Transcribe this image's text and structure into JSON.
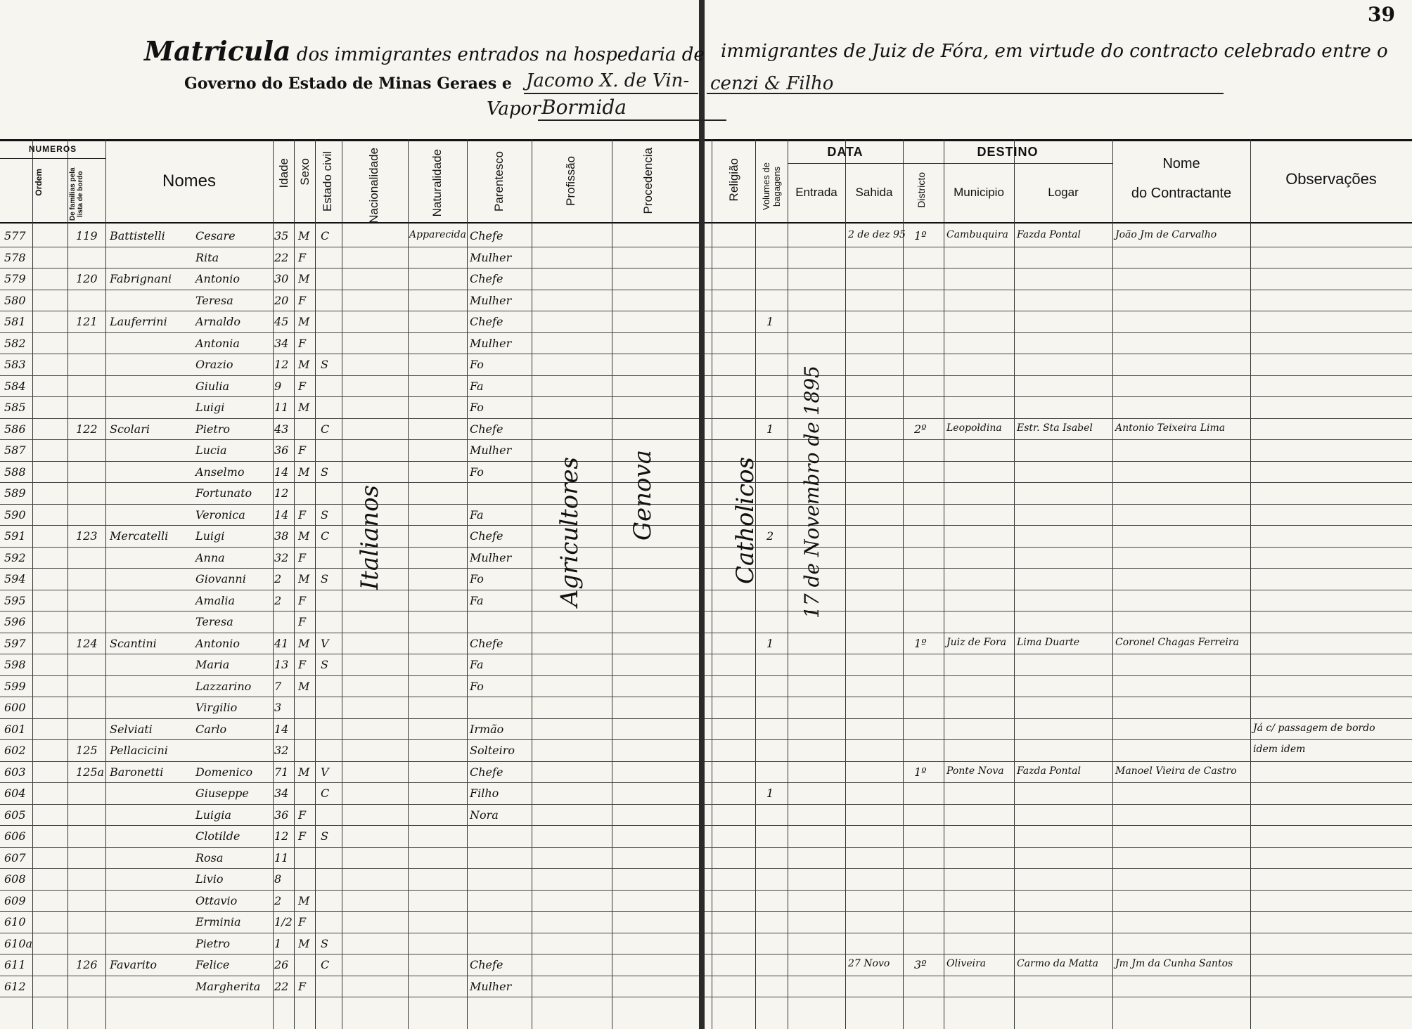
{
  "page_number": "39",
  "header": {
    "left_title_word": "Matricula",
    "left_title_rest": "dos immigrantes entrados na hospedaria de",
    "right_title": "immigrantes de Juiz de Fóra, em virtude do contracto celebrado entre o",
    "governo_text": "Governo do Estado de Minas Geraes e",
    "contractor_left": "Jacomo X. de Vin-",
    "contractor_right": "cenzi & Filho",
    "vapor_label": "Vapor",
    "vapor_name": "Bormida"
  },
  "columns_left": {
    "numeros": "NUMEROS",
    "ordem": "Ordem",
    "familia": "De familias pela lista de bordo",
    "nomes": "Nomes",
    "idade": "Idade",
    "sexo": "Sexo",
    "estado_civil": "Estado civil",
    "nacionalidade": "Nacionalidade",
    "naturalidade": "Naturalidade",
    "parentesco": "Parentesco",
    "profissao": "Profissão",
    "procedencia": "Procedencia"
  },
  "columns_right": {
    "religiao": "Religião",
    "volumes": "Volumes de bagagens",
    "data": "DATA",
    "entrada": "Entrada",
    "sahida": "Sahida",
    "destino": "DESTINO",
    "districto": "Districto",
    "municipio": "Municipio",
    "logar": "Logar",
    "nome_label": "Nome",
    "contractante_label": "do Contractante",
    "observacoes": "Observações"
  },
  "vertical_entries": {
    "nacionalidade": "Italianos",
    "profissao": "Agricultores",
    "procedencia": "Genova",
    "religiao": "Catholicos",
    "entrada": "17 de Novembro de 1895"
  },
  "rows": [
    {
      "ordem": "577",
      "familia": "119",
      "surname": "Battistelli",
      "name": "Cesare",
      "idade": "35",
      "sexo": "M",
      "civil": "C",
      "natural": "Apparecida",
      "parentesco": "Chefe",
      "volumes": "",
      "sahida": "2 de dez 95",
      "distr": "1º",
      "municipio": "Cambuquira",
      "logar": "Fazda Pontal",
      "contractante": "João Jm de Carvalho",
      "obs": ""
    },
    {
      "ordem": "578",
      "familia": "",
      "surname": "",
      "name": "Rita",
      "idade": "22",
      "sexo": "F",
      "civil": "",
      "natural": "",
      "parentesco": "Mulher",
      "volumes": "",
      "sahida": "",
      "distr": "",
      "municipio": "",
      "logar": "",
      "contractante": "",
      "obs": ""
    },
    {
      "ordem": "579",
      "familia": "120",
      "surname": "Fabrignani",
      "name": "Antonio",
      "idade": "30",
      "sexo": "M",
      "civil": "",
      "natural": "",
      "parentesco": "Chefe",
      "volumes": "",
      "sahida": "",
      "distr": "",
      "municipio": "",
      "logar": "",
      "contractante": "",
      "obs": ""
    },
    {
      "ordem": "580",
      "familia": "",
      "surname": "",
      "name": "Teresa",
      "idade": "20",
      "sexo": "F",
      "civil": "",
      "natural": "",
      "parentesco": "Mulher",
      "volumes": "",
      "sahida": "",
      "distr": "",
      "municipio": "",
      "logar": "",
      "contractante": "",
      "obs": ""
    },
    {
      "ordem": "581",
      "familia": "121",
      "surname": "Lauferrini",
      "name": "Arnaldo",
      "idade": "45",
      "sexo": "M",
      "civil": "",
      "natural": "",
      "parentesco": "Chefe",
      "volumes": "1",
      "sahida": "",
      "distr": "",
      "municipio": "",
      "logar": "",
      "contractante": "",
      "obs": ""
    },
    {
      "ordem": "582",
      "familia": "",
      "surname": "",
      "name": "Antonia",
      "idade": "34",
      "sexo": "F",
      "civil": "",
      "natural": "",
      "parentesco": "Mulher",
      "volumes": "",
      "sahida": "",
      "distr": "",
      "municipio": "",
      "logar": "",
      "contractante": "",
      "obs": ""
    },
    {
      "ordem": "583",
      "familia": "",
      "surname": "",
      "name": "Orazio",
      "idade": "12",
      "sexo": "M",
      "civil": "S",
      "natural": "",
      "parentesco": "Fo",
      "volumes": "",
      "sahida": "",
      "distr": "",
      "municipio": "",
      "logar": "",
      "contractante": "",
      "obs": ""
    },
    {
      "ordem": "584",
      "familia": "",
      "surname": "",
      "name": "Giulia",
      "idade": "9",
      "sexo": "F",
      "civil": "",
      "natural": "",
      "parentesco": "Fa",
      "volumes": "",
      "sahida": "",
      "distr": "",
      "municipio": "",
      "logar": "",
      "contractante": "",
      "obs": ""
    },
    {
      "ordem": "585",
      "familia": "",
      "surname": "",
      "name": "Luigi",
      "idade": "11",
      "sexo": "M",
      "civil": "",
      "natural": "",
      "parentesco": "Fo",
      "volumes": "",
      "sahida": "",
      "distr": "",
      "municipio": "",
      "logar": "",
      "contractante": "",
      "obs": ""
    },
    {
      "ordem": "586",
      "familia": "122",
      "surname": "Scolari",
      "name": "Pietro",
      "idade": "43",
      "sexo": "",
      "civil": "C",
      "natural": "",
      "parentesco": "Chefe",
      "volumes": "1",
      "sahida": "",
      "distr": "2º",
      "municipio": "Leopoldina",
      "logar": "Estr. Sta Isabel",
      "contractante": "Antonio Teixeira Lima",
      "obs": ""
    },
    {
      "ordem": "587",
      "familia": "",
      "surname": "",
      "name": "Lucia",
      "idade": "36",
      "sexo": "F",
      "civil": "",
      "natural": "",
      "parentesco": "Mulher",
      "volumes": "",
      "sahida": "",
      "distr": "",
      "municipio": "",
      "logar": "",
      "contractante": "",
      "obs": ""
    },
    {
      "ordem": "588",
      "familia": "",
      "surname": "",
      "name": "Anselmo",
      "idade": "14",
      "sexo": "M",
      "civil": "S",
      "natural": "",
      "parentesco": "Fo",
      "volumes": "",
      "sahida": "",
      "distr": "",
      "municipio": "",
      "logar": "",
      "contractante": "",
      "obs": ""
    },
    {
      "ordem": "589",
      "familia": "",
      "surname": "",
      "name": "Fortunato",
      "idade": "12",
      "sexo": "",
      "civil": "",
      "natural": "",
      "parentesco": "",
      "volumes": "",
      "sahida": "",
      "distr": "",
      "municipio": "",
      "logar": "",
      "contractante": "",
      "obs": ""
    },
    {
      "ordem": "590",
      "familia": "",
      "surname": "",
      "name": "Veronica",
      "idade": "14",
      "sexo": "F",
      "civil": "S",
      "natural": "",
      "parentesco": "Fa",
      "volumes": "",
      "sahida": "",
      "distr": "",
      "municipio": "",
      "logar": "",
      "contractante": "",
      "obs": ""
    },
    {
      "ordem": "591",
      "familia": "123",
      "surname": "Mercatelli",
      "name": "Luigi",
      "idade": "38",
      "sexo": "M",
      "civil": "C",
      "natural": "",
      "parentesco": "Chefe",
      "volumes": "2",
      "sahida": "",
      "distr": "",
      "municipio": "",
      "logar": "",
      "contractante": "",
      "obs": ""
    },
    {
      "ordem": "592",
      "familia": "",
      "surname": "",
      "name": "Anna",
      "idade": "32",
      "sexo": "F",
      "civil": "",
      "natural": "",
      "parentesco": "Mulher",
      "volumes": "",
      "sahida": "",
      "distr": "",
      "municipio": "",
      "logar": "",
      "contractante": "",
      "obs": ""
    },
    {
      "ordem": "594",
      "familia": "",
      "surname": "",
      "name": "Giovanni",
      "idade": "2",
      "sexo": "M",
      "civil": "S",
      "natural": "",
      "parentesco": "Fo",
      "volumes": "",
      "sahida": "",
      "distr": "",
      "municipio": "",
      "logar": "",
      "contractante": "",
      "obs": ""
    },
    {
      "ordem": "595",
      "familia": "",
      "surname": "",
      "name": "Amalia",
      "idade": "2",
      "sexo": "F",
      "civil": "",
      "natural": "",
      "parentesco": "Fa",
      "volumes": "",
      "sahida": "",
      "distr": "",
      "municipio": "",
      "logar": "",
      "contractante": "",
      "obs": ""
    },
    {
      "ordem": "596",
      "familia": "",
      "surname": "",
      "name": "Teresa",
      "idade": "",
      "sexo": "F",
      "civil": "",
      "natural": "",
      "parentesco": "",
      "volumes": "",
      "sahida": "",
      "distr": "",
      "municipio": "",
      "logar": "",
      "contractante": "",
      "obs": ""
    },
    {
      "ordem": "597",
      "familia": "124",
      "surname": "Scantini",
      "name": "Antonio",
      "idade": "41",
      "sexo": "M",
      "civil": "V",
      "natural": "",
      "parentesco": "Chefe",
      "volumes": "1",
      "sahida": "",
      "distr": "1º",
      "municipio": "Juiz de Fora",
      "logar": "Lima Duarte",
      "contractante": "Coronel Chagas Ferreira",
      "obs": ""
    },
    {
      "ordem": "598",
      "familia": "",
      "surname": "",
      "name": "Maria",
      "idade": "13",
      "sexo": "F",
      "civil": "S",
      "natural": "",
      "parentesco": "Fa",
      "volumes": "",
      "sahida": "",
      "distr": "",
      "municipio": "",
      "logar": "",
      "contractante": "",
      "obs": ""
    },
    {
      "ordem": "599",
      "familia": "",
      "surname": "",
      "name": "Lazzarino",
      "idade": "7",
      "sexo": "M",
      "civil": "",
      "natural": "",
      "parentesco": "Fo",
      "volumes": "",
      "sahida": "",
      "distr": "",
      "municipio": "",
      "logar": "",
      "contractante": "",
      "obs": ""
    },
    {
      "ordem": "600",
      "familia": "",
      "surname": "",
      "name": "Virgilio",
      "idade": "3",
      "sexo": "",
      "civil": "",
      "natural": "",
      "parentesco": "",
      "volumes": "",
      "sahida": "",
      "distr": "",
      "municipio": "",
      "logar": "",
      "contractante": "",
      "obs": ""
    },
    {
      "ordem": "601",
      "familia": "",
      "surname": "Selviati",
      "name": "Carlo",
      "idade": "14",
      "sexo": "",
      "civil": "",
      "natural": "",
      "parentesco": "Irmão",
      "volumes": "",
      "sahida": "",
      "distr": "",
      "municipio": "",
      "logar": "",
      "contractante": "",
      "obs": "Já c/ passagem de bordo"
    },
    {
      "ordem": "602",
      "familia": "125",
      "surname": "Pellacicini",
      "name": "",
      "idade": "32",
      "sexo": "",
      "civil": "",
      "natural": "",
      "parentesco": "Solteiro",
      "volumes": "",
      "sahida": "",
      "distr": "",
      "municipio": "",
      "logar": "",
      "contractante": "",
      "obs": "idem idem"
    },
    {
      "ordem": "603",
      "familia": "125a",
      "surname": "Baronetti",
      "name": "Domenico",
      "idade": "71",
      "sexo": "M",
      "civil": "V",
      "natural": "",
      "parentesco": "Chefe",
      "volumes": "",
      "sahida": "",
      "distr": "1º",
      "municipio": "Ponte Nova",
      "logar": "Fazda Pontal",
      "contractante": "Manoel Vieira de Castro",
      "obs": ""
    },
    {
      "ordem": "604",
      "familia": "",
      "surname": "",
      "name": "Giuseppe",
      "idade": "34",
      "sexo": "",
      "civil": "C",
      "natural": "",
      "parentesco": "Filho",
      "volumes": "1",
      "sahida": "",
      "distr": "",
      "municipio": "",
      "logar": "",
      "contractante": "",
      "obs": ""
    },
    {
      "ordem": "605",
      "familia": "",
      "surname": "",
      "name": "Luigia",
      "idade": "36",
      "sexo": "F",
      "civil": "",
      "natural": "",
      "parentesco": "Nora",
      "volumes": "",
      "sahida": "",
      "distr": "",
      "municipio": "",
      "logar": "",
      "contractante": "",
      "obs": ""
    },
    {
      "ordem": "606",
      "familia": "",
      "surname": "",
      "name": "Clotilde",
      "idade": "12",
      "sexo": "F",
      "civil": "S",
      "natural": "",
      "parentesco": "",
      "volumes": "",
      "sahida": "",
      "distr": "",
      "municipio": "",
      "logar": "",
      "contractante": "",
      "obs": ""
    },
    {
      "ordem": "607",
      "familia": "",
      "surname": "",
      "name": "Rosa",
      "idade": "11",
      "sexo": "",
      "civil": "",
      "natural": "",
      "parentesco": "",
      "volumes": "",
      "sahida": "",
      "distr": "",
      "municipio": "",
      "logar": "",
      "contractante": "",
      "obs": ""
    },
    {
      "ordem": "608",
      "familia": "",
      "surname": "",
      "name": "Livio",
      "idade": "8",
      "sexo": "",
      "civil": "",
      "natural": "",
      "parentesco": "",
      "volumes": "",
      "sahida": "",
      "distr": "",
      "municipio": "",
      "logar": "",
      "contractante": "",
      "obs": ""
    },
    {
      "ordem": "609",
      "familia": "",
      "surname": "",
      "name": "Ottavio",
      "idade": "2",
      "sexo": "M",
      "civil": "",
      "natural": "",
      "parentesco": "",
      "volumes": "",
      "sahida": "",
      "distr": "",
      "municipio": "",
      "logar": "",
      "contractante": "",
      "obs": ""
    },
    {
      "ordem": "610",
      "familia": "",
      "surname": "",
      "name": "Erminia",
      "idade": "1/2",
      "sexo": "F",
      "civil": "",
      "natural": "",
      "parentesco": "",
      "volumes": "",
      "sahida": "",
      "distr": "",
      "municipio": "",
      "logar": "",
      "contractante": "",
      "obs": ""
    },
    {
      "ordem": "610a",
      "familia": "",
      "surname": "",
      "name": "Pietro",
      "idade": "1",
      "sexo": "M",
      "civil": "S",
      "natural": "",
      "parentesco": "",
      "volumes": "",
      "sahida": "",
      "distr": "",
      "municipio": "",
      "logar": "",
      "contractante": "",
      "obs": ""
    },
    {
      "ordem": "611",
      "familia": "126",
      "surname": "Favarito",
      "name": "Felice",
      "idade": "26",
      "sexo": "",
      "civil": "C",
      "natural": "",
      "parentesco": "Chefe",
      "volumes": "",
      "sahida": "27 Novo",
      "distr": "3º",
      "municipio": "Oliveira",
      "logar": "Carmo da Matta",
      "contractante": "Jm Jm da Cunha Santos",
      "obs": ""
    },
    {
      "ordem": "612",
      "familia": "",
      "surname": "",
      "name": "Margherita",
      "idade": "22",
      "sexo": "F",
      "civil": "",
      "natural": "",
      "parentesco": "Mulher",
      "volumes": "",
      "sahida": "",
      "distr": "",
      "municipio": "",
      "logar": "",
      "contractante": "",
      "obs": ""
    }
  ]
}
